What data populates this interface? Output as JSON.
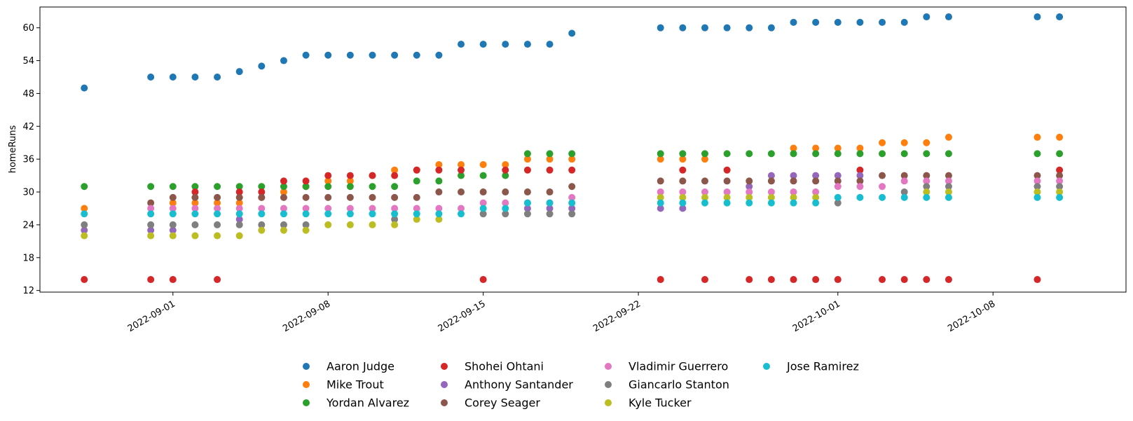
{
  "chart_data": {
    "type": "scatter",
    "title": "",
    "xlabel": "",
    "ylabel": "homeRuns",
    "x_type": "date",
    "xlim": [
      "2022-08-26",
      "2022-10-14"
    ],
    "ylim": [
      11.7,
      63.8
    ],
    "x_ticks": [
      "2022-09-01",
      "2022-09-08",
      "2022-09-15",
      "2022-09-22",
      "2022-10-01",
      "2022-10-08"
    ],
    "y_ticks": [
      12,
      18,
      24,
      30,
      36,
      42,
      48,
      54,
      60
    ],
    "grid": false,
    "legend_position": "bottom-center",
    "dates": [
      "2022-08-28",
      "2022-08-31",
      "2022-09-01",
      "2022-09-02",
      "2022-09-03",
      "2022-09-04",
      "2022-09-05",
      "2022-09-06",
      "2022-09-07",
      "2022-09-08",
      "2022-09-09",
      "2022-09-10",
      "2022-09-11",
      "2022-09-12",
      "2022-09-13",
      "2022-09-14",
      "2022-09-15",
      "2022-09-16",
      "2022-09-17",
      "2022-09-18",
      "2022-09-19",
      "2022-09-23",
      "2022-09-24",
      "2022-09-25",
      "2022-09-26",
      "2022-09-27",
      "2022-09-28",
      "2022-09-29",
      "2022-09-30",
      "2022-10-01",
      "2022-10-02",
      "2022-10-03",
      "2022-10-04",
      "2022-10-05",
      "2022-10-06",
      "2022-10-10",
      "2022-10-11"
    ],
    "series": [
      {
        "name": "Aaron Judge",
        "color": "#1f77b4",
        "values": [
          49,
          51,
          51,
          51,
          51,
          52,
          53,
          54,
          55,
          55,
          55,
          55,
          55,
          55,
          55,
          57,
          57,
          57,
          57,
          57,
          59,
          60,
          60,
          60,
          60,
          60,
          60,
          61,
          61,
          61,
          61,
          61,
          61,
          62,
          62,
          62,
          62
        ]
      },
      {
        "name": "Mike Trout",
        "color": "#ff7f0e",
        "values": [
          27,
          null,
          28,
          28,
          28,
          28,
          29,
          30,
          31,
          32,
          32,
          33,
          34,
          34,
          35,
          35,
          35,
          35,
          36,
          36,
          36,
          36,
          36,
          36,
          null,
          null,
          null,
          38,
          38,
          38,
          38,
          39,
          39,
          39,
          40,
          40,
          40
        ]
      },
      {
        "name": "Yordan Alvarez",
        "color": "#2ca02c",
        "values": [
          31,
          31,
          31,
          31,
          31,
          31,
          31,
          31,
          31,
          31,
          31,
          31,
          31,
          32,
          32,
          33,
          33,
          33,
          37,
          37,
          37,
          37,
          37,
          37,
          37,
          37,
          37,
          37,
          37,
          37,
          37,
          37,
          37,
          37,
          37,
          37,
          37
        ]
      },
      {
        "name": "Shohei Ohtani",
        "color": "#d62728",
        "values": [
          14,
          14,
          14,
          30,
          14,
          30,
          30,
          32,
          32,
          33,
          33,
          33,
          33,
          34,
          34,
          34,
          14,
          34,
          34,
          34,
          34,
          14,
          34,
          14,
          34,
          14,
          14,
          14,
          14,
          14,
          34,
          14,
          14,
          14,
          14,
          14,
          34
        ]
      },
      {
        "name": "Anthony Santander",
        "color": "#9467bd",
        "values": [
          23,
          23,
          23,
          null,
          null,
          25,
          null,
          null,
          null,
          null,
          null,
          null,
          null,
          null,
          null,
          null,
          null,
          null,
          27,
          27,
          27,
          27,
          27,
          null,
          null,
          31,
          33,
          33,
          33,
          33,
          33,
          null,
          null,
          null,
          null,
          null,
          null
        ]
      },
      {
        "name": "Corey Seager",
        "color": "#8c564b",
        "values": [
          null,
          28,
          29,
          29,
          29,
          29,
          29,
          29,
          29,
          29,
          29,
          29,
          29,
          29,
          30,
          30,
          30,
          30,
          30,
          30,
          31,
          32,
          32,
          32,
          32,
          32,
          32,
          32,
          32,
          32,
          32,
          33,
          33,
          33,
          33,
          33,
          33
        ]
      },
      {
        "name": "Vladimir Guerrero",
        "color": "#e377c2",
        "values": [
          null,
          27,
          27,
          27,
          27,
          27,
          27,
          27,
          27,
          27,
          27,
          27,
          27,
          27,
          27,
          27,
          28,
          28,
          28,
          28,
          29,
          30,
          30,
          30,
          30,
          30,
          30,
          30,
          30,
          31,
          31,
          31,
          32,
          32,
          32,
          32,
          32
        ]
      },
      {
        "name": "Giancarlo Stanton",
        "color": "#7f7f7f",
        "values": [
          24,
          24,
          24,
          24,
          24,
          24,
          24,
          24,
          24,
          null,
          null,
          null,
          25,
          null,
          null,
          null,
          26,
          26,
          26,
          26,
          26,
          null,
          null,
          null,
          null,
          null,
          null,
          null,
          null,
          28,
          null,
          null,
          30,
          31,
          31,
          31,
          31
        ]
      },
      {
        "name": "Kyle Tucker",
        "color": "#bcbd22",
        "values": [
          22,
          22,
          22,
          22,
          22,
          22,
          23,
          23,
          23,
          24,
          24,
          24,
          24,
          25,
          25,
          null,
          null,
          null,
          null,
          null,
          null,
          29,
          29,
          29,
          29,
          29,
          29,
          29,
          29,
          null,
          null,
          null,
          null,
          30,
          30,
          30,
          30
        ]
      },
      {
        "name": "Jose Ramirez",
        "color": "#17becf",
        "values": [
          26,
          26,
          26,
          26,
          26,
          26,
          26,
          26,
          26,
          26,
          26,
          26,
          26,
          26,
          26,
          26,
          27,
          27,
          28,
          28,
          28,
          28,
          28,
          28,
          28,
          28,
          28,
          28,
          28,
          29,
          29,
          29,
          29,
          29,
          29,
          29,
          29
        ]
      }
    ]
  }
}
